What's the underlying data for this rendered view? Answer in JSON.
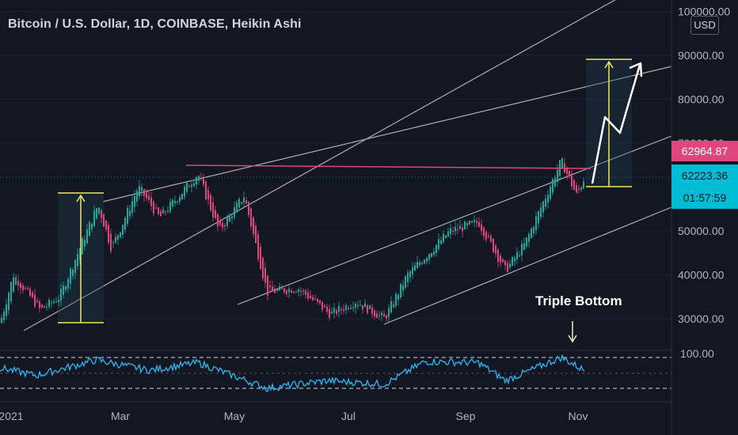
{
  "chart_title": "Bitcoin / U.S. Dollar, 1D, COINBASE, Heikin Ashi",
  "currency_button": "USD",
  "price_scale": {
    "ticks": [
      "100000.00",
      "90000.00",
      "80000.00",
      "70000.00",
      "50000.00",
      "40000.00",
      "30000.00"
    ],
    "tick_values": [
      100000,
      90000,
      80000,
      70000,
      50000,
      40000,
      30000
    ],
    "resistance_price": "62964.87",
    "last_price": "62223.36",
    "countdown": "01:57:59"
  },
  "time_axis": {
    "labels": [
      "2021",
      "Mar",
      "May",
      "Jul",
      "Sep",
      "Nov"
    ]
  },
  "rsi_scale": {
    "top_label": "100.00"
  },
  "annotations": {
    "triple_bottom": "Triple Bottom"
  },
  "colors": {
    "background": "#131722",
    "bull_candle": "#26a69a",
    "bear_candle": "#e0457b",
    "resistance_line": "#e0457b",
    "measure_lines": "#f5e663",
    "channel_lines": "#c8c8c8",
    "rsi_line": "#29b6f6"
  },
  "chart_data": {
    "type": "line",
    "title": "Bitcoin / U.S. Dollar, 1D, COINBASE, Heikin Ashi",
    "x_labels": [
      "2021",
      "Mar",
      "May",
      "Jul",
      "Sep",
      "Nov"
    ],
    "ylim": [
      25000,
      100000
    ],
    "resistance_level": 62964.87,
    "last_price": 62223.36,
    "price_path": [
      {
        "x": "2021-01-01",
        "y": 29000
      },
      {
        "x": "2021-01-08",
        "y": 40000
      },
      {
        "x": "2021-01-22",
        "y": 32000
      },
      {
        "x": "2021-02-01",
        "y": 35000
      },
      {
        "x": "2021-02-21",
        "y": 56000
      },
      {
        "x": "2021-02-28",
        "y": 46000
      },
      {
        "x": "2021-03-14",
        "y": 60000
      },
      {
        "x": "2021-03-25",
        "y": 53000
      },
      {
        "x": "2021-04-14",
        "y": 63000
      },
      {
        "x": "2021-04-25",
        "y": 50000
      },
      {
        "x": "2021-05-08",
        "y": 58000
      },
      {
        "x": "2021-05-20",
        "y": 36000
      },
      {
        "x": "2021-06-05",
        "y": 37000
      },
      {
        "x": "2021-06-22",
        "y": 31000
      },
      {
        "x": "2021-07-05",
        "y": 34000
      },
      {
        "x": "2021-07-20",
        "y": 30000
      },
      {
        "x": "2021-08-01",
        "y": 40000
      },
      {
        "x": "2021-08-23",
        "y": 50000
      },
      {
        "x": "2021-09-07",
        "y": 52000
      },
      {
        "x": "2021-09-21",
        "y": 41000
      },
      {
        "x": "2021-10-01",
        "y": 47000
      },
      {
        "x": "2021-10-20",
        "y": 66000
      },
      {
        "x": "2021-10-28",
        "y": 58000
      },
      {
        "x": "2021-11-01",
        "y": 62223
      }
    ],
    "rsi_path": [
      {
        "x": "2021-01-01",
        "y": 60
      },
      {
        "x": "2021-01-20",
        "y": 45
      },
      {
        "x": "2021-02-20",
        "y": 75
      },
      {
        "x": "2021-03-20",
        "y": 55
      },
      {
        "x": "2021-04-14",
        "y": 70
      },
      {
        "x": "2021-05-20",
        "y": 20
      },
      {
        "x": "2021-06-20",
        "y": 35
      },
      {
        "x": "2021-07-20",
        "y": 28
      },
      {
        "x": "2021-08-10",
        "y": 72
      },
      {
        "x": "2021-09-07",
        "y": 70
      },
      {
        "x": "2021-09-21",
        "y": 35
      },
      {
        "x": "2021-10-20",
        "y": 80
      },
      {
        "x": "2021-11-01",
        "y": 55
      }
    ]
  }
}
